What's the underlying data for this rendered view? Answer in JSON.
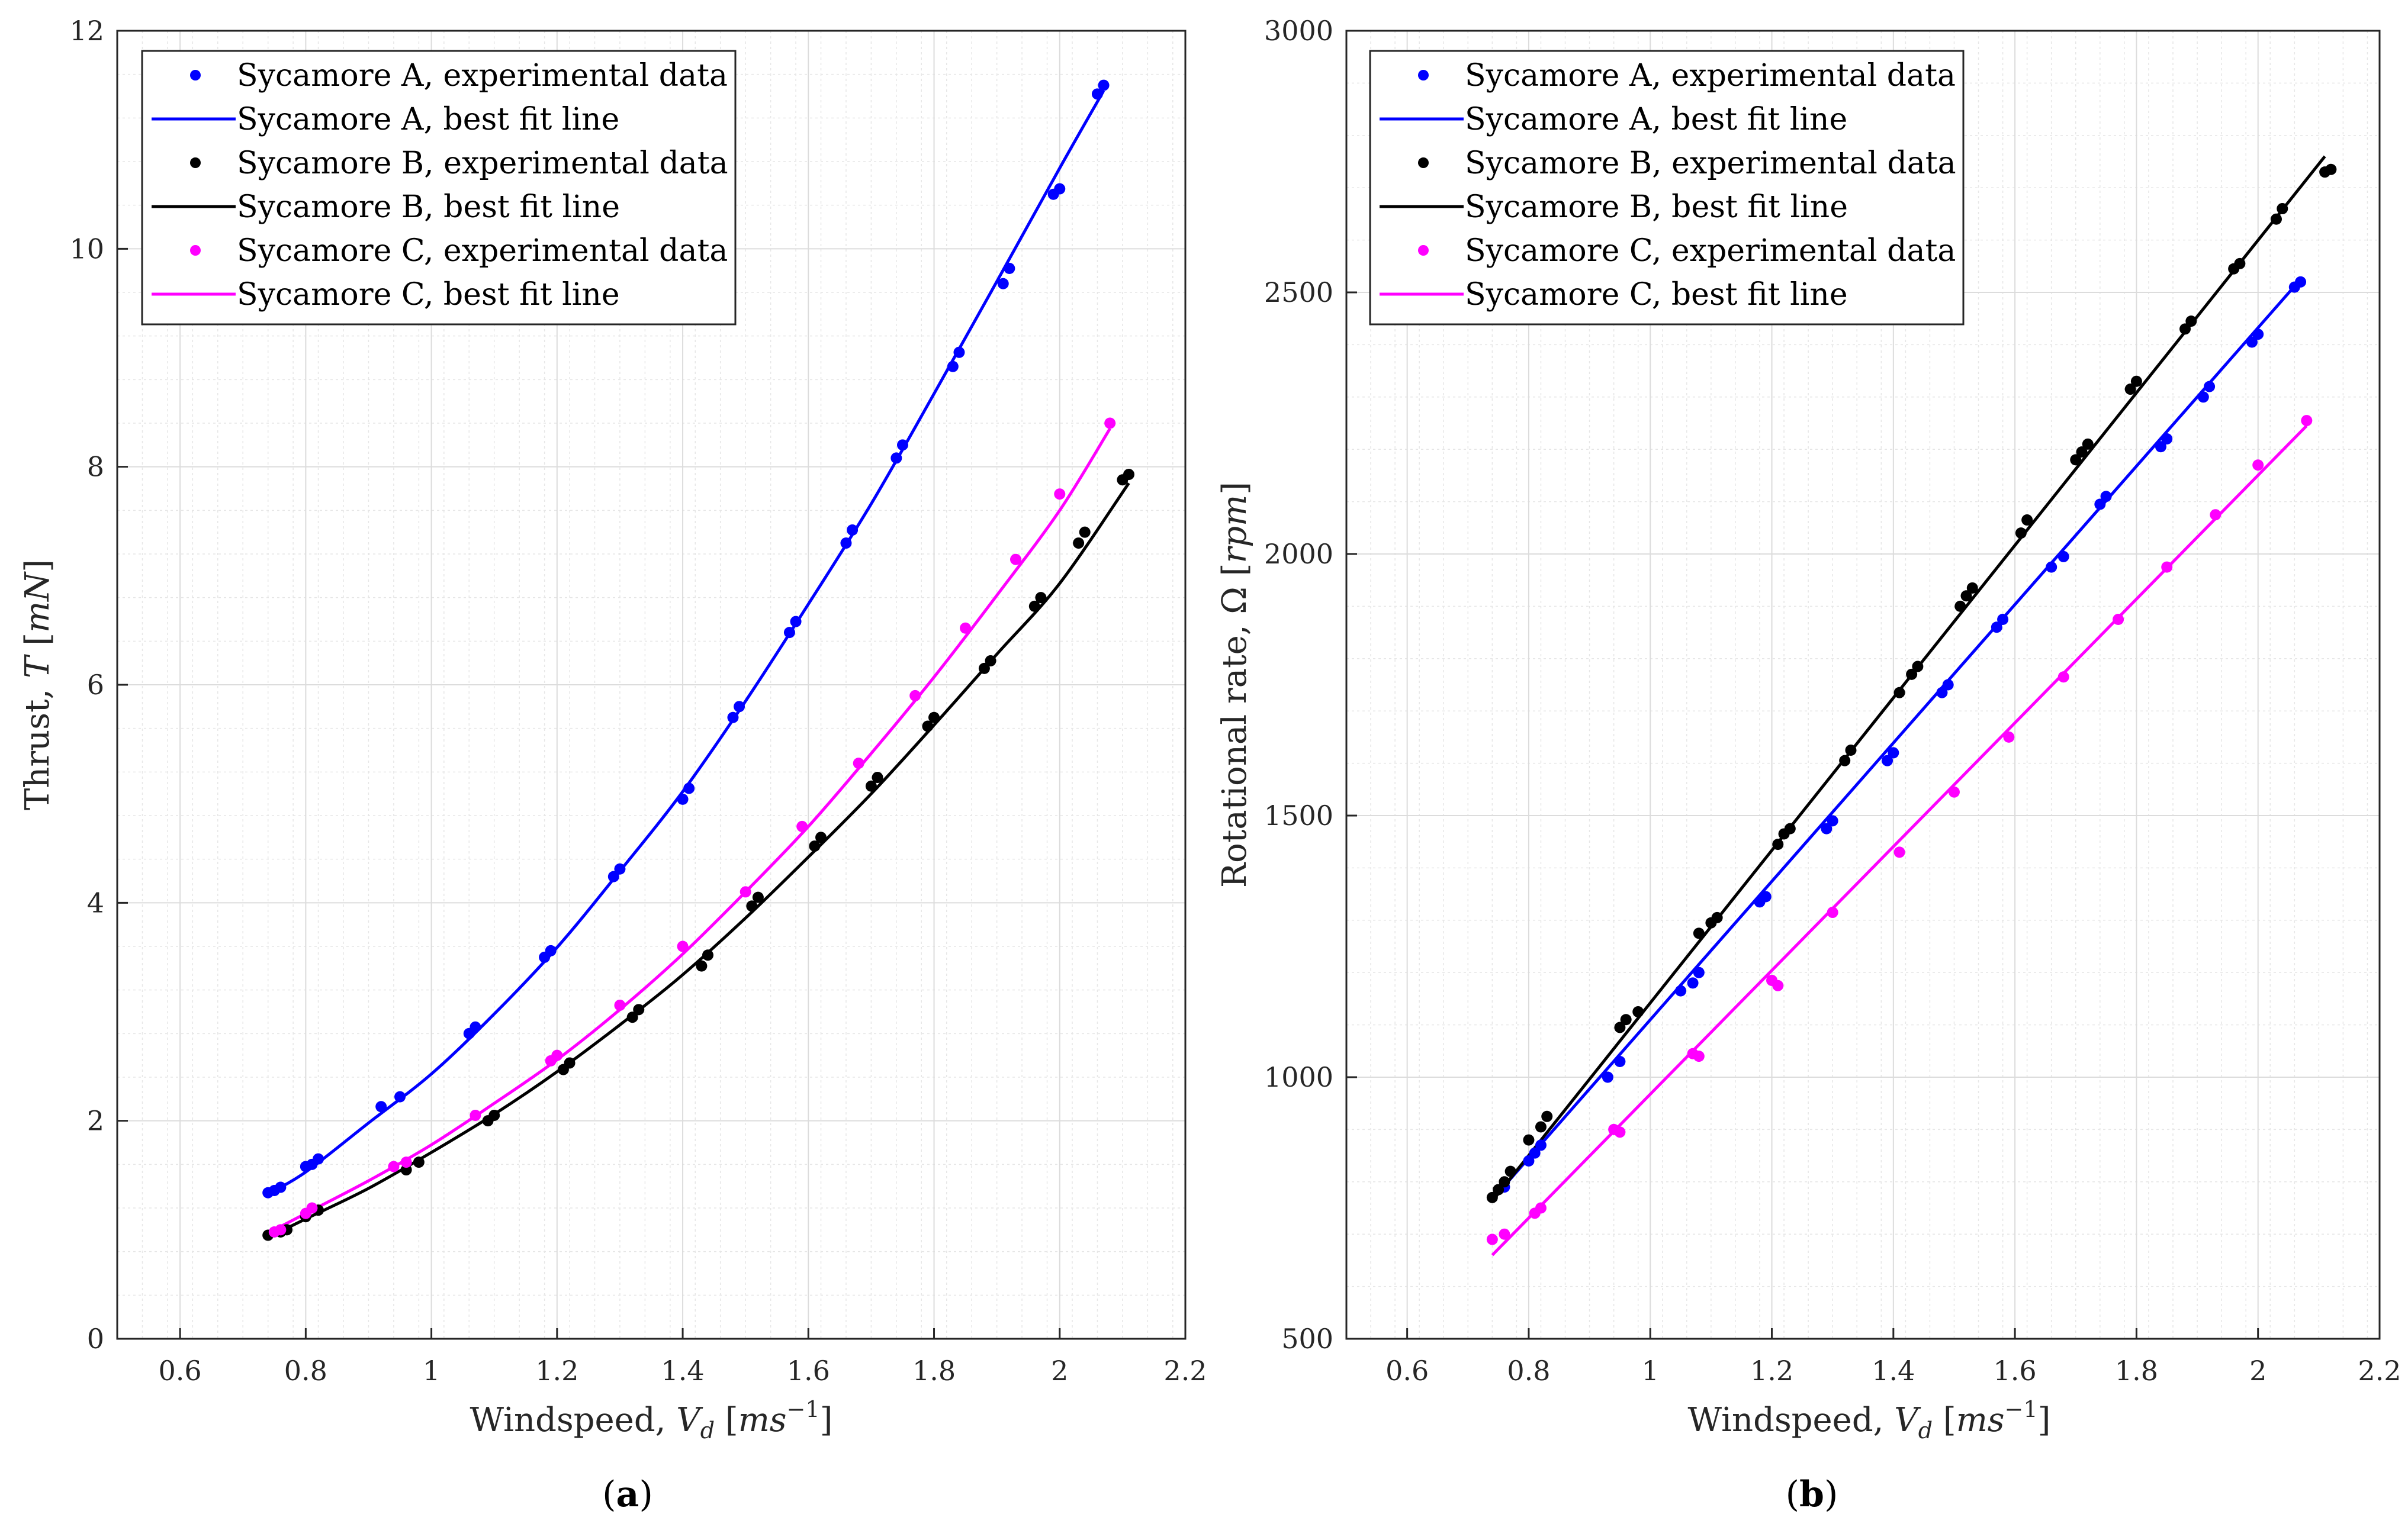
{
  "colors": {
    "A": "#0000ff",
    "B": "#000000",
    "C": "#ff00ff",
    "grid": "#e6e6e6",
    "frame": "#262626"
  },
  "legend": {
    "A_exp": "Sycamore A, experimental data",
    "A_fit": "Sycamore A, best fit line",
    "B_exp": "Sycamore B, experimental data",
    "B_fit": "Sycamore B, best fit line",
    "C_exp": "Sycamore C, experimental data",
    "C_fit": "Sycamore C, best fit line"
  },
  "chart_data": [
    {
      "type": "scatter",
      "panel": "a",
      "caption": "(a)",
      "xlabel": "Windspeed, V_d [ms^-1]",
      "ylabel": "Thrust, T [mN]",
      "xlim": [
        0.5,
        2.2
      ],
      "ylim": [
        0,
        12
      ],
      "xticks": [
        0.6,
        0.8,
        1,
        1.2,
        1.4,
        1.6,
        1.8,
        2,
        2.2
      ],
      "yticks": [
        0,
        2,
        4,
        6,
        8,
        10,
        12
      ],
      "xtick_labels": [
        "0.6",
        "0.8",
        "1",
        "1.2",
        "1.4",
        "1.6",
        "1.8",
        "2",
        "2.2"
      ],
      "ytick_labels": [
        "0",
        "2",
        "4",
        "6",
        "8",
        "10",
        "12"
      ],
      "grid": true,
      "legend_position": "top-left",
      "series": [
        {
          "name": "Sycamore A, experimental data",
          "key": "A",
          "kind": "scatter",
          "x": [
            0.74,
            0.75,
            0.76,
            0.8,
            0.81,
            0.82,
            0.92,
            0.95,
            1.06,
            1.07,
            1.18,
            1.19,
            1.29,
            1.3,
            1.4,
            1.41,
            1.48,
            1.49,
            1.57,
            1.58,
            1.66,
            1.67,
            1.74,
            1.75,
            1.83,
            1.84,
            1.91,
            1.92,
            1.99,
            2.0,
            2.06,
            2.07
          ],
          "y": [
            1.34,
            1.36,
            1.39,
            1.58,
            1.6,
            1.65,
            2.13,
            2.22,
            2.8,
            2.86,
            3.5,
            3.56,
            4.24,
            4.31,
            4.95,
            5.05,
            5.7,
            5.8,
            6.48,
            6.58,
            7.3,
            7.42,
            8.08,
            8.2,
            8.92,
            9.05,
            9.68,
            9.82,
            10.5,
            10.55,
            11.42,
            11.5
          ]
        },
        {
          "name": "Sycamore A, best fit line",
          "key": "A",
          "kind": "line",
          "x": [
            0.74,
            0.8,
            0.9,
            1.0,
            1.1,
            1.2,
            1.3,
            1.4,
            1.5,
            1.6,
            1.7,
            1.8,
            1.9,
            2.0,
            2.07
          ],
          "y": [
            1.33,
            1.53,
            1.98,
            2.43,
            2.98,
            3.59,
            4.29,
            5.02,
            5.85,
            6.74,
            7.66,
            8.67,
            9.7,
            10.74,
            11.45
          ]
        },
        {
          "name": "Sycamore B, experimental data",
          "key": "B",
          "kind": "scatter",
          "x": [
            0.74,
            0.76,
            0.77,
            0.8,
            0.82,
            0.96,
            0.98,
            1.09,
            1.1,
            1.21,
            1.22,
            1.32,
            1.33,
            1.43,
            1.44,
            1.51,
            1.52,
            1.61,
            1.62,
            1.7,
            1.71,
            1.79,
            1.8,
            1.88,
            1.89,
            1.96,
            1.97,
            2.03,
            2.04,
            2.1,
            2.11
          ],
          "y": [
            0.95,
            0.98,
            1.0,
            1.12,
            1.18,
            1.55,
            1.62,
            2.0,
            2.05,
            2.47,
            2.53,
            2.95,
            3.02,
            3.42,
            3.52,
            3.97,
            4.05,
            4.52,
            4.6,
            5.07,
            5.15,
            5.62,
            5.7,
            6.15,
            6.22,
            6.72,
            6.8,
            7.3,
            7.4,
            7.88,
            7.93
          ]
        },
        {
          "name": "Sycamore B, best fit line",
          "key": "B",
          "kind": "line",
          "x": [
            0.74,
            0.8,
            0.9,
            1.0,
            1.1,
            1.2,
            1.3,
            1.4,
            1.5,
            1.6,
            1.7,
            1.8,
            1.9,
            2.0,
            2.11
          ],
          "y": [
            0.93,
            1.1,
            1.38,
            1.71,
            2.06,
            2.45,
            2.88,
            3.34,
            3.86,
            4.42,
            5.0,
            5.63,
            6.28,
            6.93,
            7.85
          ]
        },
        {
          "name": "Sycamore C, experimental data",
          "key": "C",
          "kind": "scatter",
          "x": [
            0.75,
            0.76,
            0.8,
            0.81,
            0.94,
            0.96,
            1.07,
            1.19,
            1.2,
            1.3,
            1.4,
            1.5,
            1.59,
            1.68,
            1.77,
            1.85,
            1.93,
            2.0,
            2.08
          ],
          "y": [
            0.98,
            1.0,
            1.15,
            1.2,
            1.58,
            1.62,
            2.05,
            2.55,
            2.6,
            3.06,
            3.6,
            4.1,
            4.7,
            5.28,
            5.9,
            6.52,
            7.15,
            7.75,
            8.4
          ]
        },
        {
          "name": "Sycamore C, best fit line",
          "key": "C",
          "kind": "line",
          "x": [
            0.74,
            0.8,
            0.9,
            1.0,
            1.1,
            1.2,
            1.3,
            1.4,
            1.5,
            1.6,
            1.7,
            1.8,
            1.9,
            2.0,
            2.08
          ],
          "y": [
            0.97,
            1.15,
            1.45,
            1.78,
            2.16,
            2.56,
            3.02,
            3.53,
            4.1,
            4.7,
            5.37,
            6.07,
            6.82,
            7.6,
            8.35
          ]
        }
      ]
    },
    {
      "type": "scatter",
      "panel": "b",
      "caption": "(b)",
      "xlabel": "Windspeed, V_d [ms^-1]",
      "ylabel": "Rotational rate, Ω [rpm]",
      "xlim": [
        0.5,
        2.2
      ],
      "ylim": [
        500,
        3000
      ],
      "xticks": [
        0.6,
        0.8,
        1,
        1.2,
        1.4,
        1.6,
        1.8,
        2,
        2.2
      ],
      "yticks": [
        500,
        1000,
        1500,
        2000,
        2500,
        3000
      ],
      "xtick_labels": [
        "0.6",
        "0.8",
        "1",
        "1.2",
        "1.4",
        "1.6",
        "1.8",
        "2",
        "2.2"
      ],
      "ytick_labels": [
        "500",
        "1000",
        "1500",
        "2000",
        "2500",
        "3000"
      ],
      "grid": true,
      "legend_position": "top-left",
      "series": [
        {
          "name": "Sycamore A, experimental data",
          "key": "A",
          "kind": "scatter",
          "x": [
            0.76,
            0.8,
            0.81,
            0.82,
            0.93,
            0.95,
            1.05,
            1.07,
            1.08,
            1.18,
            1.19,
            1.29,
            1.3,
            1.39,
            1.4,
            1.48,
            1.49,
            1.57,
            1.58,
            1.66,
            1.68,
            1.74,
            1.75,
            1.84,
            1.85,
            1.91,
            1.92,
            1.99,
            2.0,
            2.06,
            2.07
          ],
          "y": [
            790,
            840,
            855,
            870,
            1000,
            1030,
            1165,
            1180,
            1200,
            1335,
            1345,
            1475,
            1490,
            1605,
            1620,
            1735,
            1750,
            1860,
            1875,
            1975,
            1995,
            2095,
            2110,
            2205,
            2220,
            2300,
            2320,
            2405,
            2420,
            2510,
            2520
          ]
        },
        {
          "name": "Sycamore A, best fit line",
          "key": "A",
          "kind": "line",
          "x": [
            0.74,
            2.07
          ],
          "y": [
            766,
            2525
          ]
        },
        {
          "name": "Sycamore B, experimental data",
          "key": "B",
          "kind": "scatter",
          "x": [
            0.74,
            0.75,
            0.76,
            0.77,
            0.8,
            0.82,
            0.83,
            0.95,
            0.96,
            0.98,
            1.08,
            1.1,
            1.11,
            1.21,
            1.22,
            1.23,
            1.32,
            1.33,
            1.41,
            1.43,
            1.44,
            1.51,
            1.52,
            1.53,
            1.61,
            1.62,
            1.7,
            1.71,
            1.72,
            1.79,
            1.8,
            1.88,
            1.89,
            1.96,
            1.97,
            2.03,
            2.04,
            2.11,
            2.12
          ],
          "y": [
            770,
            785,
            800,
            820,
            880,
            905,
            925,
            1095,
            1110,
            1125,
            1275,
            1295,
            1305,
            1445,
            1465,
            1475,
            1605,
            1625,
            1735,
            1770,
            1785,
            1900,
            1920,
            1935,
            2040,
            2065,
            2180,
            2195,
            2210,
            2315,
            2330,
            2430,
            2445,
            2545,
            2555,
            2640,
            2660,
            2730,
            2735
          ]
        },
        {
          "name": "Sycamore B, best fit line",
          "key": "B",
          "kind": "line",
          "x": [
            0.74,
            2.11
          ],
          "y": [
            763,
            2760
          ]
        },
        {
          "name": "Sycamore C, experimental data",
          "key": "C",
          "kind": "scatter",
          "x": [
            0.74,
            0.76,
            0.81,
            0.82,
            0.94,
            0.95,
            1.07,
            1.08,
            1.2,
            1.21,
            1.3,
            1.41,
            1.5,
            1.59,
            1.68,
            1.77,
            1.85,
            1.93,
            2.0,
            2.08
          ],
          "y": [
            690,
            700,
            740,
            750,
            900,
            895,
            1045,
            1040,
            1185,
            1175,
            1315,
            1430,
            1545,
            1650,
            1765,
            1875,
            1975,
            2075,
            2170,
            2255
          ]
        },
        {
          "name": "Sycamore C, best fit line",
          "key": "C",
          "kind": "line",
          "x": [
            0.74,
            2.08
          ],
          "y": [
            660,
            2245
          ]
        }
      ]
    }
  ]
}
